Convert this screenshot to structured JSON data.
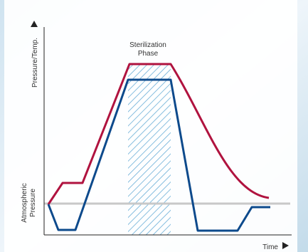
{
  "phase_label": [
    "Sterilization",
    "Phase"
  ],
  "y_axis_label": "Pressure/Temp.",
  "reference_label": [
    "Atmospheric",
    "Pressure"
  ],
  "x_axis_label": "Time"
}
